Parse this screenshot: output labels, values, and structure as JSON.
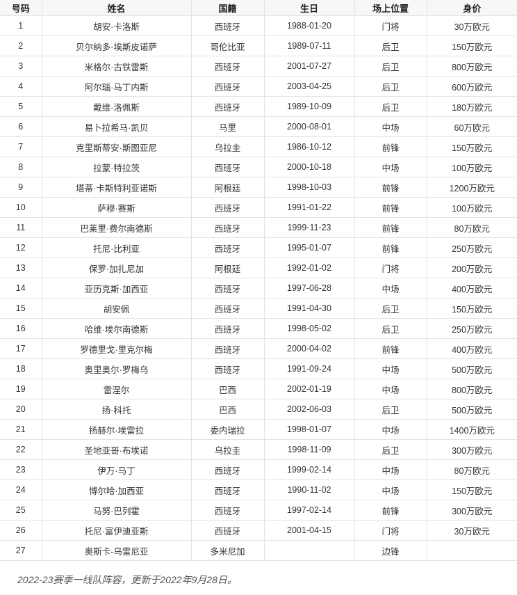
{
  "table": {
    "headers": [
      "号码",
      "姓名",
      "国籍",
      "生日",
      "场上位置",
      "身价"
    ],
    "rows": [
      [
        "1",
        "胡安·卡洛斯",
        "西班牙",
        "1988-01-20",
        "门将",
        "30万欧元"
      ],
      [
        "2",
        "贝尔纳多·埃斯皮诺萨",
        "哥伦比亚",
        "1989-07-11",
        "后卫",
        "150万欧元"
      ],
      [
        "3",
        "米格尔·古铁雷斯",
        "西班牙",
        "2001-07-27",
        "后卫",
        "800万欧元"
      ],
      [
        "4",
        "阿尔瑙·马丁内斯",
        "西班牙",
        "2003-04-25",
        "后卫",
        "600万欧元"
      ],
      [
        "5",
        "戴维·洛佩斯",
        "西班牙",
        "1989-10-09",
        "后卫",
        "180万欧元"
      ],
      [
        "6",
        "易卜拉希马·凯贝",
        "马里",
        "2000-08-01",
        "中场",
        "60万欧元"
      ],
      [
        "7",
        "克里斯蒂安·斯图亚尼",
        "乌拉圭",
        "1986-10-12",
        "前锋",
        "150万欧元"
      ],
      [
        "8",
        "拉蒙·特拉茨",
        "西班牙",
        "2000-10-18",
        "中场",
        "100万欧元"
      ],
      [
        "9",
        "塔蒂·卡斯特利亚诺斯",
        "阿根廷",
        "1998-10-03",
        "前锋",
        "1200万欧元"
      ],
      [
        "10",
        "萨穆·赛斯",
        "西班牙",
        "1991-01-22",
        "前锋",
        "100万欧元"
      ],
      [
        "11",
        "巴莱里·费尔南德斯",
        "西班牙",
        "1999-11-23",
        "前锋",
        "80万欧元"
      ],
      [
        "12",
        "托尼·比利亚",
        "西班牙",
        "1995-01-07",
        "前锋",
        "250万欧元"
      ],
      [
        "13",
        "保罗·加扎尼加",
        "阿根廷",
        "1992-01-02",
        "门将",
        "200万欧元"
      ],
      [
        "14",
        "亚历克斯·加西亚",
        "西班牙",
        "1997-06-28",
        "中场",
        "400万欧元"
      ],
      [
        "15",
        "胡安佩",
        "西班牙",
        "1991-04-30",
        "后卫",
        "150万欧元"
      ],
      [
        "16",
        "哈维·埃尔南德斯",
        "西班牙",
        "1998-05-02",
        "后卫",
        "250万欧元"
      ],
      [
        "17",
        "罗德里戈·里克尔梅",
        "西班牙",
        "2000-04-02",
        "前锋",
        "400万欧元"
      ],
      [
        "18",
        "奥里奥尔·罗梅乌",
        "西班牙",
        "1991-09-24",
        "中场",
        "500万欧元"
      ],
      [
        "19",
        "雷涅尔",
        "巴西",
        "2002-01-19",
        "中场",
        "800万欧元"
      ],
      [
        "20",
        "扬·科托",
        "巴西",
        "2002-06-03",
        "后卫",
        "500万欧元"
      ],
      [
        "21",
        "扬赫尔·埃雷拉",
        "委内瑞拉",
        "1998-01-07",
        "中场",
        "1400万欧元"
      ],
      [
        "22",
        "圣地亚哥·布埃诺",
        "乌拉圭",
        "1998-11-09",
        "后卫",
        "300万欧元"
      ],
      [
        "23",
        "伊万·马丁",
        "西班牙",
        "1999-02-14",
        "中场",
        "80万欧元"
      ],
      [
        "24",
        "博尔哈·加西亚",
        "西班牙",
        "1990-11-02",
        "中场",
        "150万欧元"
      ],
      [
        "25",
        "马努·巴列霍",
        "西班牙",
        "1997-02-14",
        "前锋",
        "300万欧元"
      ],
      [
        "26",
        "托尼·富伊迪亚斯",
        "西班牙",
        "2001-04-15",
        "门将",
        "30万欧元"
      ],
      [
        "27",
        "奥斯卡-乌雷尼亚",
        "多米尼加",
        "",
        "边锋",
        ""
      ]
    ]
  },
  "caption": "2022-23赛季一线队阵容，更新于2022年9月28日。"
}
